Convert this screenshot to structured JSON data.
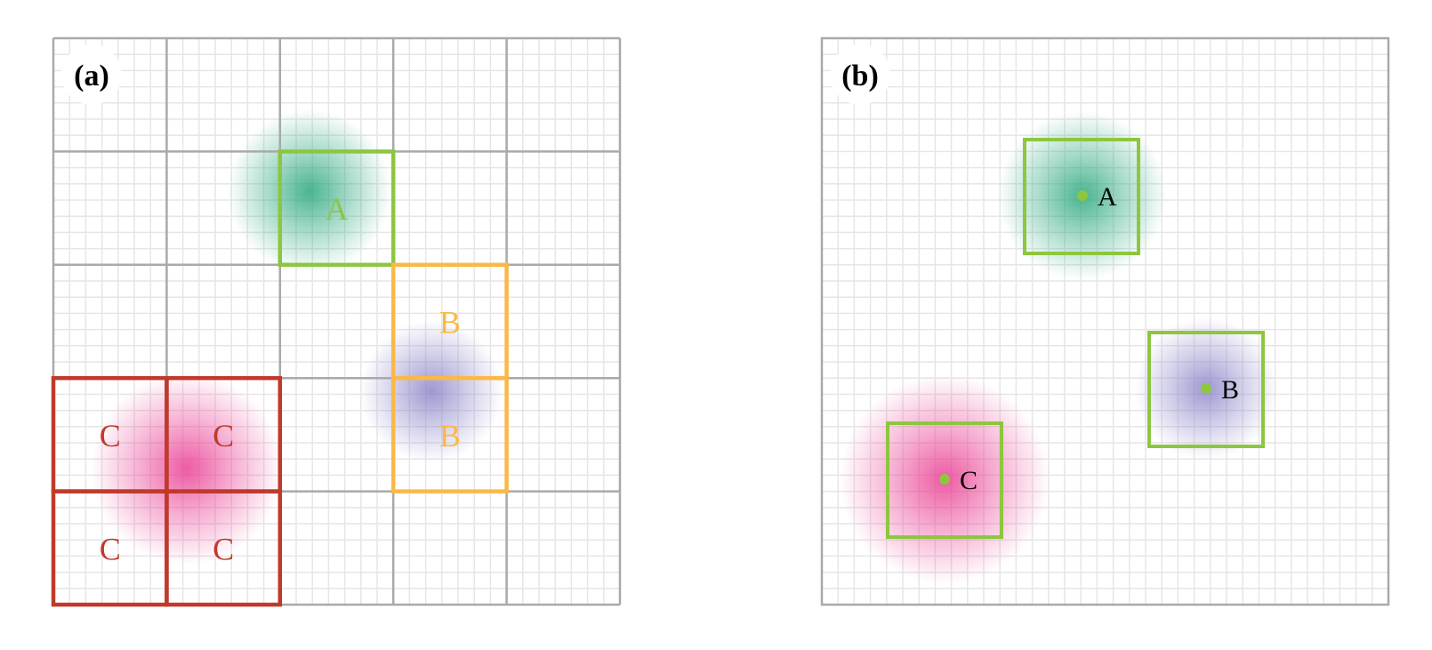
{
  "panels": [
    {
      "label": "(a)",
      "coarse_grid": {
        "rows": 5,
        "cols": 5,
        "color": "#a9a9a9"
      },
      "fine_grid": {
        "subdivisions_per_cell": 7,
        "color": "#e6e6e6"
      },
      "blobs": [
        {
          "object": "A",
          "color": "#2aa77e"
        },
        {
          "object": "B",
          "color": "#8d86c9"
        },
        {
          "object": "C",
          "color": "#ea3f94"
        }
      ],
      "cells": [
        {
          "object": "A",
          "label": "A",
          "row": 1,
          "col": 2,
          "color": "#8dc63f"
        },
        {
          "object": "B",
          "label": "B",
          "row": 2,
          "col": 3,
          "color": "#fbb847"
        },
        {
          "object": "B",
          "label": "B",
          "row": 3,
          "col": 3,
          "color": "#fbb847"
        },
        {
          "object": "C",
          "label": "C",
          "row": 3,
          "col": 0,
          "color": "#c0392b"
        },
        {
          "object": "C",
          "label": "C",
          "row": 3,
          "col": 1,
          "color": "#c0392b"
        },
        {
          "object": "C",
          "label": "C",
          "row": 4,
          "col": 0,
          "color": "#c0392b"
        },
        {
          "object": "C",
          "label": "C",
          "row": 4,
          "col": 1,
          "color": "#c0392b"
        }
      ]
    },
    {
      "label": "(b)",
      "fine_grid": {
        "lines": 35,
        "color": "#e6e6e6"
      },
      "box_color": "#8dc63f",
      "point_color": "#8dc63f",
      "objects": [
        {
          "label": "A",
          "blob_color": "#2aa77e"
        },
        {
          "label": "B",
          "blob_color": "#8d86c9"
        },
        {
          "label": "C",
          "blob_color": "#ea3f94"
        }
      ]
    }
  ]
}
